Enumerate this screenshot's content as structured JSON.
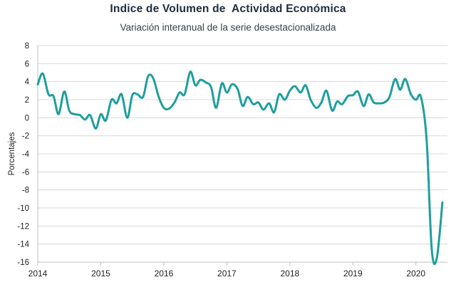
{
  "chart_data": {
    "type": "line",
    "title": "Indice de Volumen de  Actividad Económica",
    "subtitle": "Variación interanual de la serie desestacionalizada",
    "xlabel": "",
    "ylabel": "Porcentajes",
    "ylim": [
      -16,
      8
    ],
    "yticks": [
      8,
      6,
      4,
      2,
      0,
      -2,
      -4,
      -6,
      -8,
      -10,
      -12,
      -14,
      -16
    ],
    "xlim": [
      2014,
      2020.5
    ],
    "xticks": [
      "2014",
      "2015",
      "2016",
      "2017",
      "2018",
      "2019",
      "2020"
    ],
    "grid": "horizontal",
    "line_color": "#1f9e9e",
    "series": [
      {
        "x": [
          2014.0,
          2014.08,
          2014.17,
          2014.25,
          2014.33,
          2014.42,
          2014.5,
          2014.58,
          2014.67,
          2014.75,
          2014.83,
          2014.92,
          2015.0,
          2015.08,
          2015.17,
          2015.25,
          2015.33,
          2015.42,
          2015.5,
          2015.58,
          2015.67,
          2015.75,
          2015.83,
          2015.92,
          2016.0,
          2016.08,
          2016.17,
          2016.25,
          2016.33,
          2016.42,
          2016.5,
          2016.58,
          2016.67,
          2016.75,
          2016.83,
          2016.92,
          2017.0,
          2017.08,
          2017.17,
          2017.25,
          2017.33,
          2017.42,
          2017.5,
          2017.58,
          2017.67,
          2017.75,
          2017.83,
          2017.92,
          2018.0,
          2018.08,
          2018.17,
          2018.25,
          2018.33,
          2018.42,
          2018.5,
          2018.58,
          2018.67,
          2018.75,
          2018.83,
          2018.92,
          2019.0,
          2019.08,
          2019.17,
          2019.25,
          2019.33,
          2019.42,
          2019.5,
          2019.58,
          2019.67,
          2019.75,
          2019.83,
          2019.92,
          2020.0,
          2020.08,
          2020.17,
          2020.25,
          2020.33,
          2020.42
        ],
        "values": [
          3.7,
          4.9,
          2.6,
          2.4,
          0.4,
          2.9,
          0.8,
          0.4,
          0.3,
          -0.2,
          0.3,
          -1.2,
          0.4,
          -0.3,
          2.0,
          1.6,
          2.6,
          0.0,
          2.5,
          2.6,
          2.3,
          4.6,
          4.4,
          2.3,
          1.1,
          1.0,
          1.7,
          2.8,
          2.6,
          5.1,
          3.6,
          4.2,
          3.9,
          3.4,
          1.1,
          3.8,
          2.8,
          3.7,
          3.2,
          1.3,
          2.3,
          1.5,
          1.7,
          0.9,
          1.6,
          0.6,
          2.6,
          2.0,
          3.0,
          3.5,
          2.8,
          3.6,
          2.0,
          1.1,
          1.7,
          3.0,
          0.8,
          1.8,
          1.5,
          2.4,
          2.5,
          2.9,
          1.3,
          2.6,
          1.7,
          1.6,
          1.7,
          2.3,
          4.3,
          3.1,
          4.3,
          2.6,
          2.0,
          2.3,
          -2.5,
          -14.5,
          -15.6,
          -9.4
        ]
      }
    ]
  }
}
